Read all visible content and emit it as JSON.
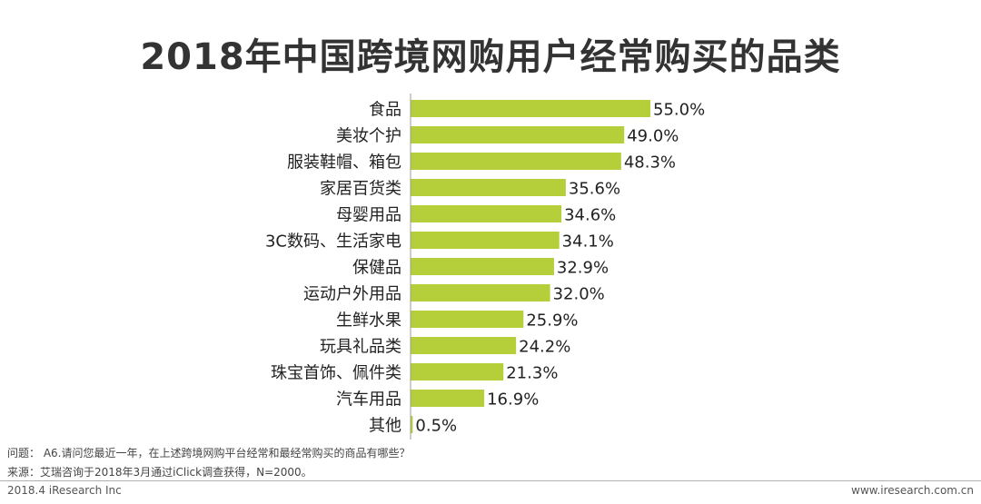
{
  "chart_data": {
    "type": "bar",
    "orientation": "horizontal",
    "title": "2018年中国跨境网购用户经常购买的品类",
    "categories": [
      "食品",
      "美妆个护",
      "服装鞋帽、箱包",
      "家居百货类",
      "母婴用品",
      "3C数码、生活家电",
      "保健品",
      "运动户外用品",
      "生鲜水果",
      "玩具礼品类",
      "珠宝首饰、佩件类",
      "汽车用品",
      "其他"
    ],
    "values": [
      55.0,
      49.0,
      48.3,
      35.6,
      34.6,
      34.1,
      32.9,
      32.0,
      25.9,
      24.2,
      21.3,
      16.9,
      0.5
    ],
    "value_labels": [
      "55.0%",
      "49.0%",
      "48.3%",
      "35.6%",
      "34.6%",
      "34.1%",
      "32.9%",
      "32.0%",
      "25.9%",
      "24.2%",
      "21.3%",
      "16.9%",
      "0.5%"
    ],
    "xlim": [
      0,
      55
    ],
    "grid": false,
    "legend": "none",
    "bar_color": "#b5cf3a",
    "axis_color": "#999999"
  },
  "notes": {
    "question": "问题： A6.请问您最近一年，在上述跨境网购平台经常和最经常购买的商品有哪些？",
    "source": "来源：艾瑞咨询于2018年3月通过iClick调查获得，N=2000。"
  },
  "footer": {
    "copyright": "2018.4 iResearch Inc",
    "website": "www.iresearch.com.cn"
  }
}
